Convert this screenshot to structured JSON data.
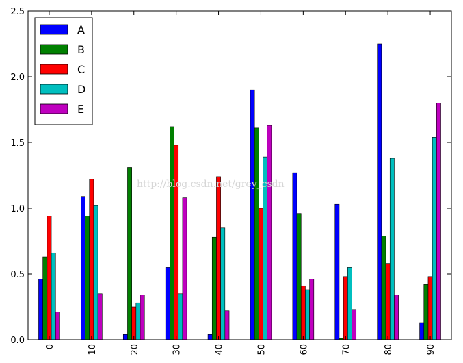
{
  "chart_data": {
    "type": "bar",
    "title": "",
    "xlabel": "",
    "ylabel": "",
    "ylim": [
      0,
      2.5
    ],
    "yticks": [
      "0.0",
      "0.5",
      "1.0",
      "1.5",
      "2.0",
      "2.5"
    ],
    "categories": [
      "0",
      "10",
      "20",
      "30",
      "40",
      "50",
      "60",
      "70",
      "80",
      "90"
    ],
    "series": [
      {
        "name": "A",
        "color": "#0000ff",
        "values": [
          0.46,
          1.09,
          0.04,
          0.55,
          0.04,
          1.9,
          1.27,
          1.03,
          2.25,
          0.13
        ]
      },
      {
        "name": "B",
        "color": "#008000",
        "values": [
          0.63,
          0.94,
          1.31,
          1.62,
          0.78,
          1.61,
          0.96,
          0.01,
          0.79,
          0.42
        ]
      },
      {
        "name": "C",
        "color": "#ff0000",
        "values": [
          0.94,
          1.22,
          0.25,
          1.48,
          1.24,
          1.0,
          0.41,
          0.48,
          0.58,
          0.48
        ]
      },
      {
        "name": "D",
        "color": "#00bfbf",
        "values": [
          0.66,
          1.02,
          0.28,
          0.35,
          0.85,
          1.39,
          0.38,
          0.55,
          1.38,
          1.54
        ]
      },
      {
        "name": "E",
        "color": "#bf00bf",
        "values": [
          0.21,
          0.35,
          0.34,
          1.08,
          0.22,
          1.63,
          0.46,
          0.23,
          0.34,
          1.8
        ]
      }
    ],
    "legend_position": "top-left",
    "grid": false
  },
  "watermark": "http://blog.csdn.net/grey_csdn"
}
